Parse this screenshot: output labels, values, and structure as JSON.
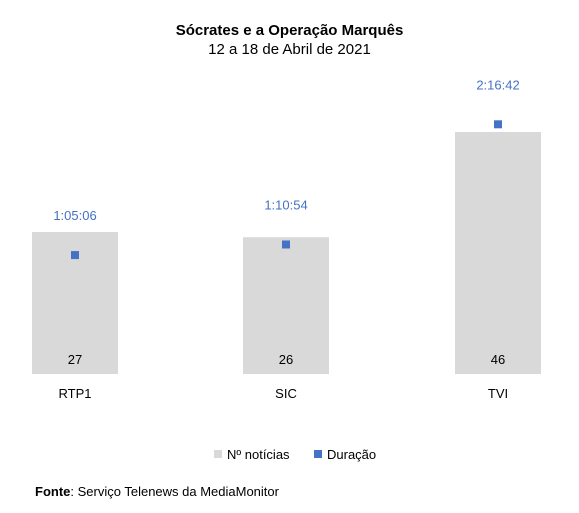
{
  "chart_data": {
    "type": "bar",
    "title": "Sócrates e a Operação Marquês",
    "subtitle": "12 a 18 de Abril de 2021",
    "categories": [
      "RTP1",
      "SIC",
      "TVI"
    ],
    "series": [
      {
        "name": "Nº notícias",
        "kind": "bar",
        "color": "#d9d9d9",
        "values": [
          27,
          26,
          46
        ]
      },
      {
        "name": "Duração",
        "kind": "marker",
        "color": "#4472c4",
        "labels": [
          "1:05:06",
          "1:10:54",
          "2:16:42"
        ],
        "values_seconds": [
          3906,
          4254,
          8202
        ]
      }
    ],
    "ylim_bars": [
      0,
      46
    ],
    "ylim_duration_seconds": [
      0,
      9000
    ],
    "grid": false,
    "legend": "bottom-center"
  },
  "source": {
    "label": "Fonte",
    "text": ": Serviço Telenews da MediaMonitor"
  }
}
